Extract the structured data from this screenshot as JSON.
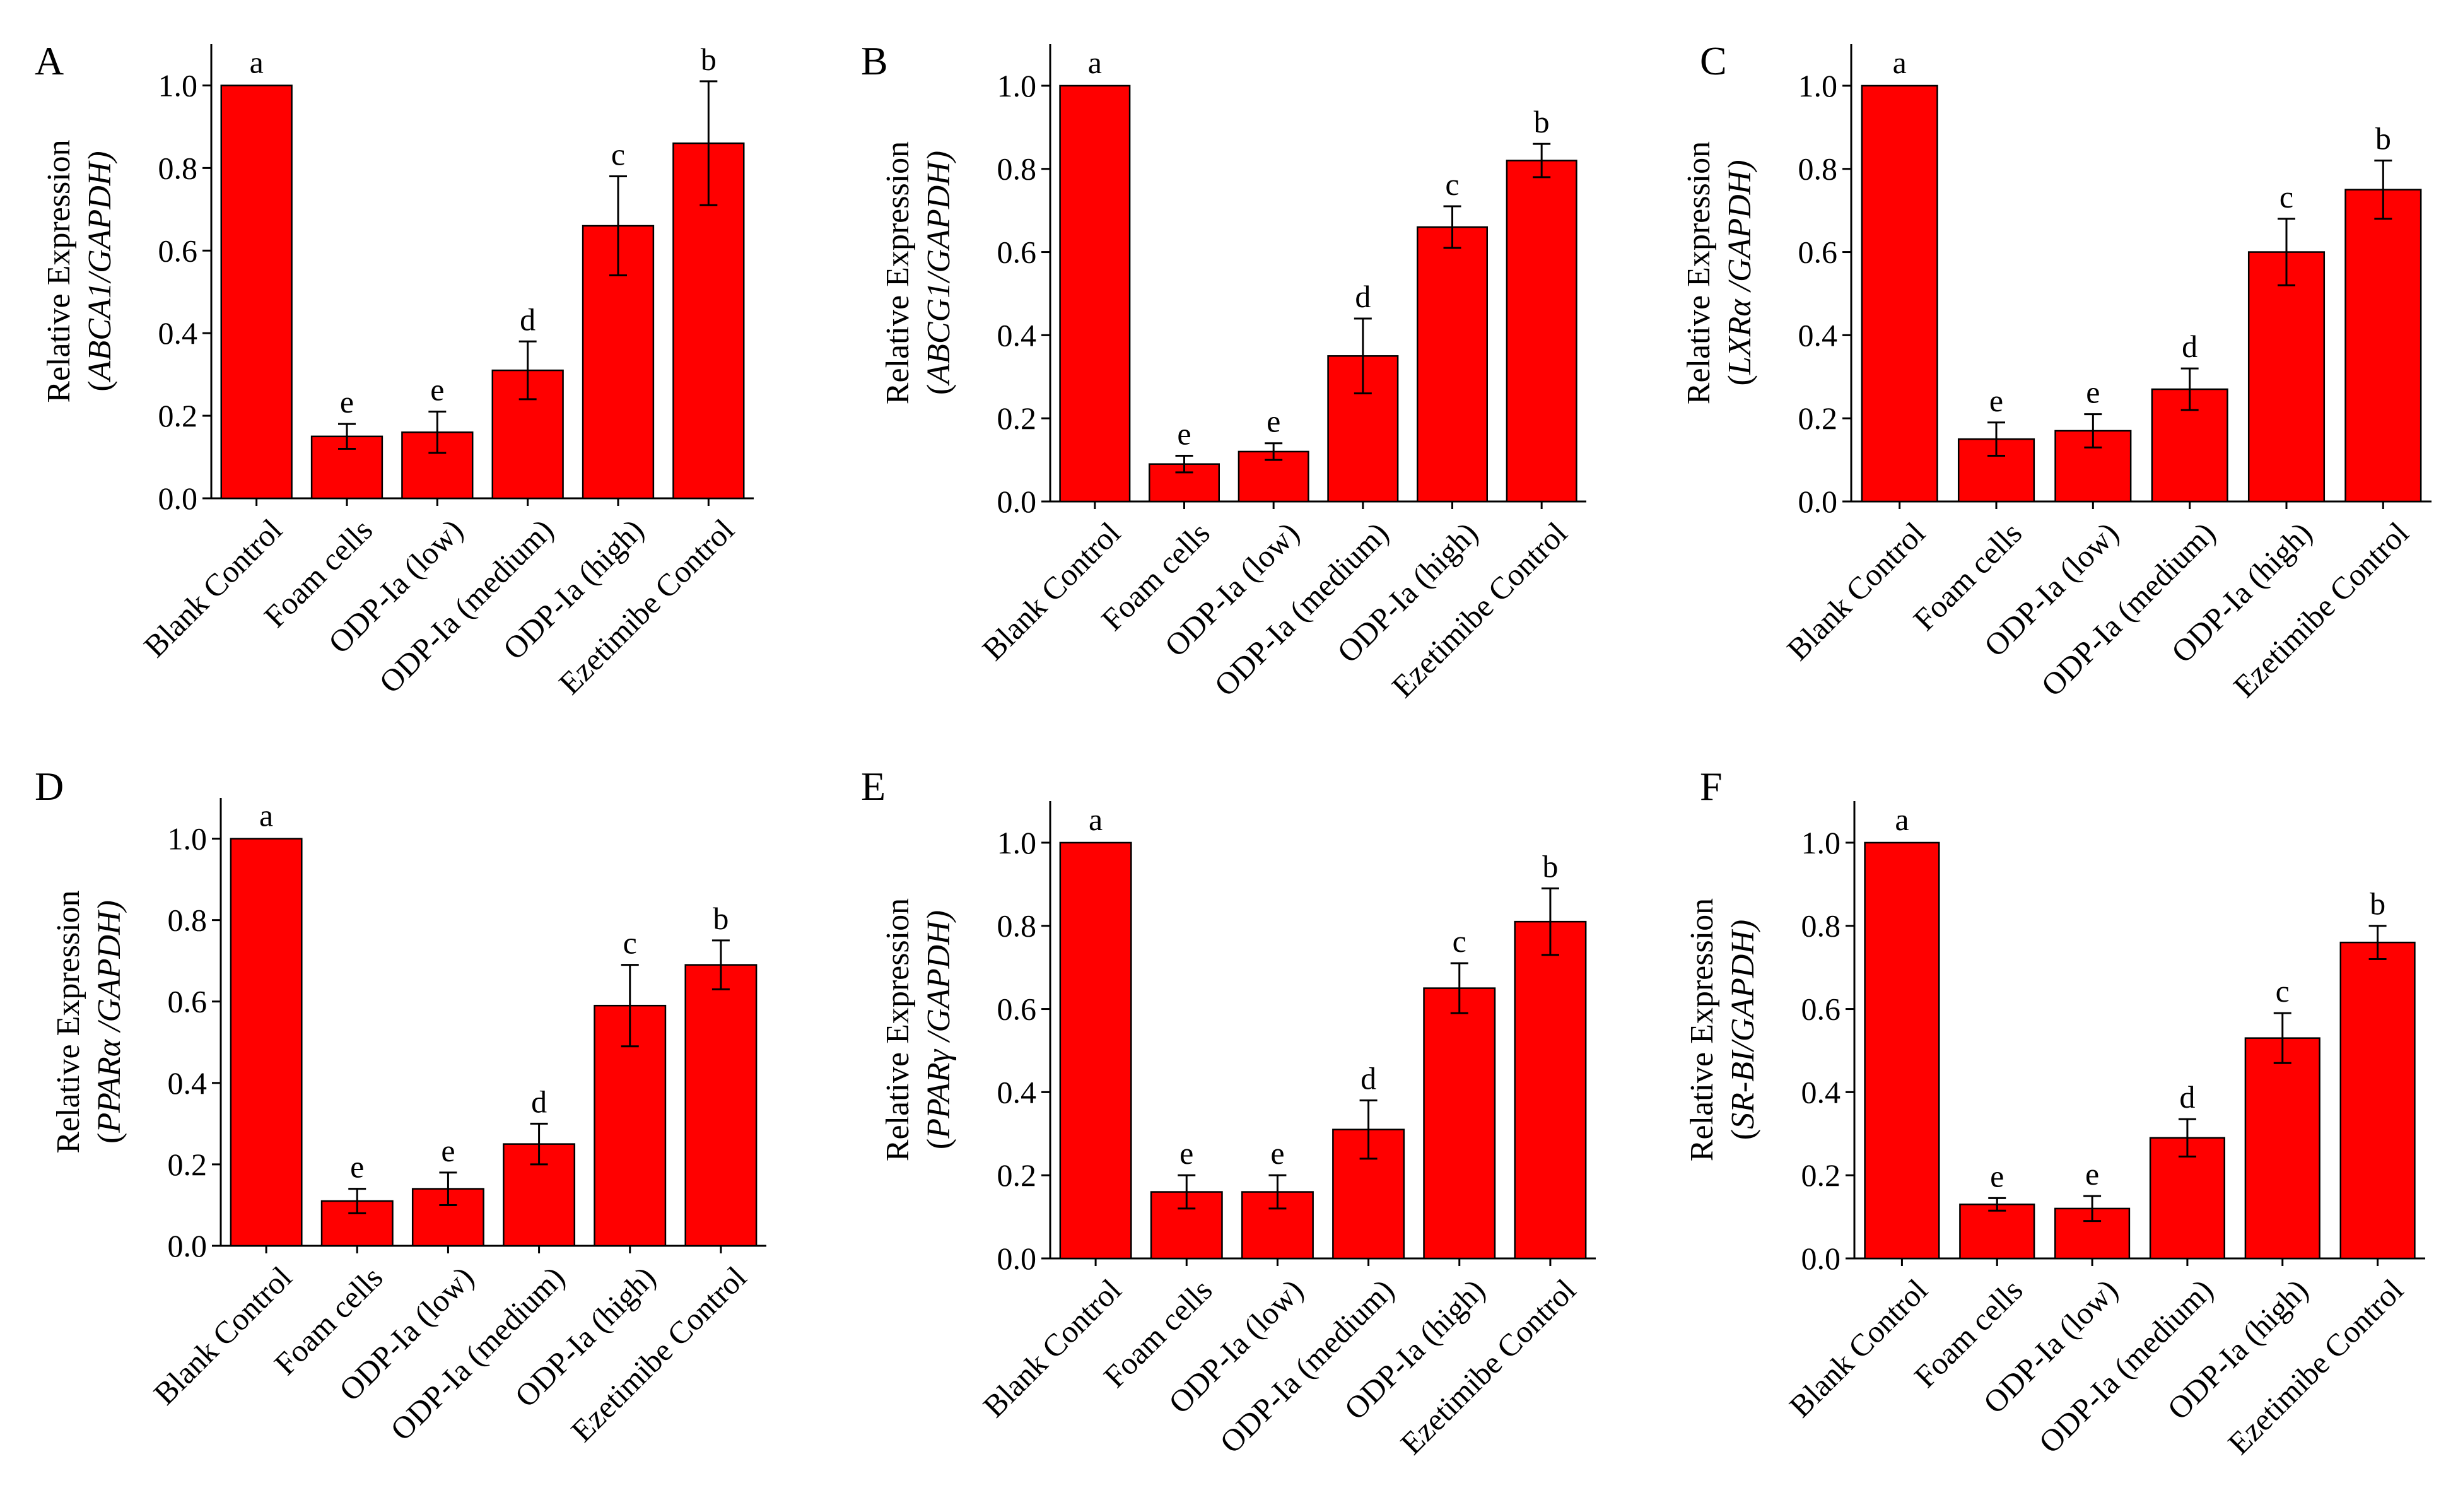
{
  "figure": {
    "description_free": true,
    "colors": {
      "bar_fill": "#ff0000",
      "bar_stroke": "#000000",
      "axis": "#000000"
    }
  },
  "chart_data": [
    {
      "type": "bar",
      "panel": "A",
      "title": "",
      "xlabel": "",
      "ylabel_line1": "Relative Expression",
      "ylabel_line2_open": "(",
      "ylabel_gene": "ABCA1",
      "ylabel_line2_close": "/GAPDH)",
      "ylim": [
        0,
        1.1
      ],
      "yticks": [
        "0.0",
        "0.2",
        "0.4",
        "0.6",
        "0.8",
        "1.0"
      ],
      "categories": [
        "Blank Control",
        "Foam cells",
        "ODP-Ia (low)",
        "ODP-Ia (medium)",
        "ODP-Ia (high)",
        "Ezetimibe Control"
      ],
      "values": [
        1.0,
        0.15,
        0.16,
        0.31,
        0.66,
        0.86
      ],
      "errors": [
        0,
        0.03,
        0.05,
        0.07,
        0.12,
        0.15
      ],
      "significance": [
        "a",
        "e",
        "e",
        "d",
        "c",
        "b"
      ]
    },
    {
      "type": "bar",
      "panel": "B",
      "title": "",
      "xlabel": "",
      "ylabel_line1": "Relative Expression",
      "ylabel_line2_open": "(",
      "ylabel_gene": "ABCG1",
      "ylabel_line2_close": "/GAPDH)",
      "ylim": [
        0,
        1.1
      ],
      "yticks": [
        "0.0",
        "0.2",
        "0.4",
        "0.6",
        "0.8",
        "1.0"
      ],
      "categories": [
        "Blank Control",
        "Foam cells",
        "ODP-Ia (low)",
        "ODP-Ia (medium)",
        "ODP-Ia (high)",
        "Ezetimibe Control"
      ],
      "values": [
        1.0,
        0.09,
        0.12,
        0.35,
        0.66,
        0.82
      ],
      "errors": [
        0,
        0.02,
        0.02,
        0.09,
        0.05,
        0.04
      ],
      "significance": [
        "a",
        "e",
        "e",
        "d",
        "c",
        "b"
      ]
    },
    {
      "type": "bar",
      "panel": "C",
      "title": "",
      "xlabel": "",
      "ylabel_line1": "Relative Expression",
      "ylabel_line2_open": "(",
      "ylabel_gene": "LXRα",
      "ylabel_line2_close": " /GAPDH)",
      "ylim": [
        0,
        1.1
      ],
      "yticks": [
        "0.0",
        "0.2",
        "0.4",
        "0.6",
        "0.8",
        "1.0"
      ],
      "categories": [
        "Blank Control",
        "Foam cells",
        "ODP-Ia (low)",
        "ODP-Ia (medium)",
        "ODP-Ia (high)",
        "Ezetimibe Control"
      ],
      "values": [
        1.0,
        0.15,
        0.17,
        0.27,
        0.6,
        0.75
      ],
      "errors": [
        0,
        0.04,
        0.04,
        0.05,
        0.08,
        0.07
      ],
      "significance": [
        "a",
        "e",
        "e",
        "d",
        "c",
        "b"
      ]
    },
    {
      "type": "bar",
      "panel": "D",
      "title": "",
      "xlabel": "",
      "ylabel_line1": "Relative Expression",
      "ylabel_line2_open": "(",
      "ylabel_gene": "PPARα",
      "ylabel_line2_close": " /GAPDH)",
      "ylim": [
        0,
        1.1
      ],
      "yticks": [
        "0.0",
        "0.2",
        "0.4",
        "0.6",
        "0.8",
        "1.0"
      ],
      "categories": [
        "Blank Control",
        "Foam cells",
        "ODP-Ia (low)",
        "ODP-Ia (medium)",
        "ODP-Ia (high)",
        "Ezetimibe Control"
      ],
      "values": [
        1.0,
        0.11,
        0.14,
        0.25,
        0.59,
        0.69
      ],
      "errors": [
        0,
        0.03,
        0.04,
        0.05,
        0.1,
        0.06
      ],
      "significance": [
        "a",
        "e",
        "e",
        "d",
        "c",
        "b"
      ]
    },
    {
      "type": "bar",
      "panel": "E",
      "title": "",
      "xlabel": "",
      "ylabel_line1": "Relative Expression",
      "ylabel_line2_open": "(",
      "ylabel_gene": "PPARγ",
      "ylabel_line2_close": " /GAPDH)",
      "ylim": [
        0,
        1.1
      ],
      "yticks": [
        "0.0",
        "0.2",
        "0.4",
        "0.6",
        "0.8",
        "1.0"
      ],
      "categories": [
        "Blank Control",
        "Foam cells",
        "ODP-Ia (low)",
        "ODP-Ia (medium)",
        "ODP-Ia (high)",
        "Ezetimibe Control"
      ],
      "values": [
        1.0,
        0.16,
        0.16,
        0.31,
        0.65,
        0.81
      ],
      "errors": [
        0,
        0.04,
        0.04,
        0.07,
        0.06,
        0.08
      ],
      "significance": [
        "a",
        "e",
        "e",
        "d",
        "c",
        "b"
      ]
    },
    {
      "type": "bar",
      "panel": "F",
      "title": "",
      "xlabel": "",
      "ylabel_line1": "Relative Expression",
      "ylabel_line2_open": "(",
      "ylabel_gene": "SR-BI",
      "ylabel_line2_close": "/GAPDH)",
      "ylim": [
        0,
        1.1
      ],
      "yticks": [
        "0.0",
        "0.2",
        "0.4",
        "0.6",
        "0.8",
        "1.0"
      ],
      "categories": [
        "Blank Control",
        "Foam cells",
        "ODP-Ia (low)",
        "ODP-Ia (medium)",
        "ODP-Ia (high)",
        "Ezetimibe Control"
      ],
      "values": [
        1.0,
        0.13,
        0.12,
        0.29,
        0.53,
        0.76
      ],
      "errors": [
        0,
        0.015,
        0.03,
        0.045,
        0.06,
        0.04
      ],
      "significance": [
        "a",
        "e",
        "e",
        "d",
        "c",
        "b"
      ]
    }
  ]
}
